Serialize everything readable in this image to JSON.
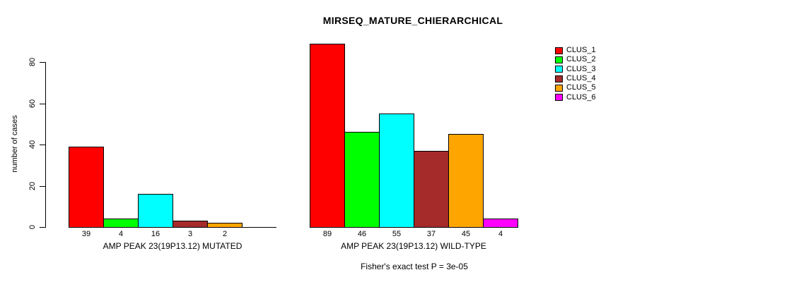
{
  "title": "MIRSEQ_MATURE_CHIERARCHICAL",
  "y_axis": {
    "label": "number of cases",
    "ticks": [
      0,
      20,
      40,
      60,
      80
    ]
  },
  "legend": {
    "items": [
      {
        "label": "CLUS_1",
        "color": "#FF0000"
      },
      {
        "label": "CLUS_2",
        "color": "#00FF00"
      },
      {
        "label": "CLUS_3",
        "color": "#00FFFF"
      },
      {
        "label": "CLUS_4",
        "color": "#A52A2A"
      },
      {
        "label": "CLUS_5",
        "color": "#FFA500"
      },
      {
        "label": "CLUS_6",
        "color": "#FF00FF"
      }
    ]
  },
  "chart_data": {
    "type": "bar",
    "title": "MIRSEQ_MATURE_CHIERARCHICAL",
    "xlabel": "",
    "ylabel": "number of cases",
    "ylim": [
      0,
      89
    ],
    "yticks": [
      0,
      20,
      40,
      60,
      80
    ],
    "grid": false,
    "legend_position": "right",
    "series_names": [
      "CLUS_1",
      "CLUS_2",
      "CLUS_3",
      "CLUS_4",
      "CLUS_5",
      "CLUS_6"
    ],
    "series_colors": [
      "#FF0000",
      "#00FF00",
      "#00FFFF",
      "#A52A2A",
      "#FFA500",
      "#FF00FF"
    ],
    "groups": [
      {
        "label": "AMP PEAK 23(19P13.12) MUTATED",
        "values": [
          39,
          4,
          16,
          3,
          2,
          0
        ],
        "bar_labels": [
          "39",
          "4",
          "16",
          "3",
          "2",
          ""
        ]
      },
      {
        "label": "AMP PEAK 23(19P13.12) WILD-TYPE",
        "values": [
          89,
          46,
          55,
          37,
          45,
          4
        ],
        "bar_labels": [
          "89",
          "46",
          "55",
          "37",
          "45",
          "4"
        ]
      }
    ],
    "annotation": "Fisher's exact test P = 3e-05"
  }
}
